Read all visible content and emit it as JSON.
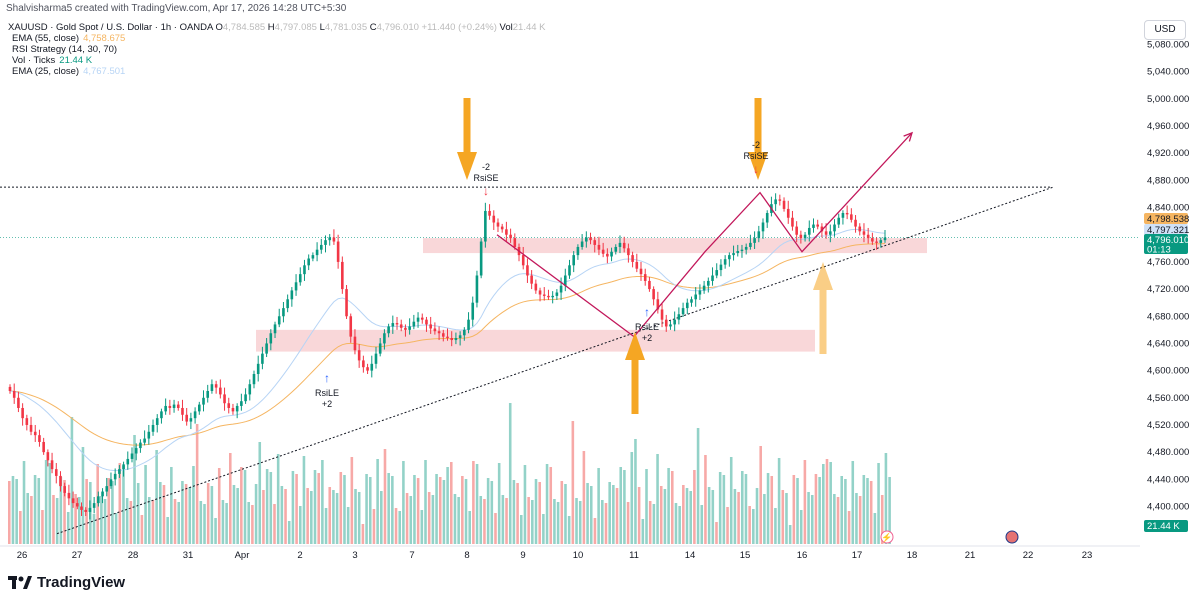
{
  "header": {
    "attribution": "Shalvisharma5 created with TradingView.com, Apr 17, 2026 14:28 UTC+5:30"
  },
  "symbol": {
    "name": "XAUUSD · Gold Spot / U.S. Dollar · 1h · OANDA",
    "o_label": "O",
    "o_value": "4,784.585",
    "h_label": "H",
    "h_value": "4,797.085",
    "l_label": "L",
    "l_value": "4,781.035",
    "c_label": "C",
    "c_value": "4,796.010",
    "change": "+11.440 (+0.24%)",
    "vol_label": "Vol",
    "vol_value": "21.44 K"
  },
  "indicators": [
    {
      "label": "EMA (55, close)",
      "value": "4,758.675",
      "color": "#f7b45a"
    },
    {
      "label": "RSI Strategy (14, 30, 70)",
      "value": "",
      "color": "#131722"
    },
    {
      "label": "Vol · Ticks",
      "value": "21.44 K",
      "color": "#089981"
    },
    {
      "label": "EMA (25, close)",
      "value": "4,767.501",
      "color": "#b7d4f5"
    }
  ],
  "currency_button": "USD",
  "brand": "TradingView",
  "colors": {
    "up": "#089981",
    "down": "#f23645",
    "vol_up": "#93d2c8",
    "vol_down": "#f7a9a7",
    "ema55": "#f5b561",
    "ema25": "#b7d4f5",
    "pattern": "#c2185b",
    "zone": "#f7c9cc",
    "arrow": "#f5a623",
    "signal_long": "#2962ff",
    "signal_short": "#f23645"
  },
  "chart_data": {
    "type": "candlestick",
    "title": "XAUUSD · Gold Spot / U.S. Dollar · 1h · OANDA",
    "price_axis": {
      "ticks": [
        5080,
        5040,
        5000,
        4960,
        4920,
        4880,
        4840,
        4760,
        4720,
        4680,
        4640,
        4600,
        4560,
        4520,
        4480,
        4440,
        4400
      ],
      "tick_labels": [
        "5,080.000",
        "5,040.000",
        "5,000.000",
        "4,960.000",
        "4,920.000",
        "4,880.000",
        "4,840.000",
        "4,760.000",
        "4,720.000",
        "4,680.000",
        "4,640.000",
        "4,600.000",
        "4,560.000",
        "4,520.000",
        "4,480.000",
        "4,440.000",
        "4,400.000"
      ],
      "range": [
        4360,
        5100
      ]
    },
    "time_axis": {
      "labels": [
        "26",
        "27",
        "28",
        "31",
        "Apr",
        "2",
        "3",
        "7",
        "8",
        "9",
        "10",
        "11",
        "14",
        "15",
        "16",
        "17",
        "18",
        "21",
        "22",
        "23"
      ]
    },
    "price_tags": [
      {
        "label": "4,798.538",
        "price": 4798.538,
        "color": "#f5b561",
        "text_color": "#131722"
      },
      {
        "label": "4,797.321",
        "price": 4797.321,
        "color": "#cfe1f7",
        "text_color": "#131722"
      },
      {
        "label": "4,796.010",
        "price": 4796.01,
        "color": "#089981",
        "text_color": "#ffffff",
        "countdown": "01:13"
      }
    ],
    "volume_tag": "21.44 K",
    "resistance_level": 4870,
    "trendline": {
      "from": [
        "26",
        4360
      ],
      "to": [
        "22",
        4870
      ]
    },
    "zones": [
      {
        "from": "8",
        "to": "17",
        "low": 4773,
        "high": 4795
      },
      {
        "from": "2",
        "to": "15",
        "low": 4628,
        "high": 4660
      }
    ],
    "pattern_path": [
      [
        "8",
        4800
      ],
      [
        "11",
        4650
      ],
      [
        "14",
        4775
      ],
      [
        "15",
        4862
      ],
      [
        "16",
        4775
      ],
      [
        "18",
        4950
      ]
    ],
    "signals": [
      {
        "type": "RsiLE",
        "qty": "+2",
        "time": "2",
        "price": 4585
      },
      {
        "type": "RsiSE",
        "qty": "-2",
        "time": "8",
        "price": 4838
      },
      {
        "type": "RsiLE",
        "qty": "+2",
        "time": "11",
        "price": 4665
      },
      {
        "type": "RsiSE",
        "qty": "-2",
        "time": "15",
        "price": 4850
      }
    ],
    "closes": [
      4570,
      4560,
      4545,
      4530,
      4520,
      4510,
      4505,
      4495,
      4480,
      4468,
      4455,
      4445,
      4430,
      4420,
      4412,
      4405,
      4400,
      4395,
      4392,
      4398,
      4405,
      4415,
      4422,
      4430,
      4440,
      4448,
      4455,
      4462,
      4470,
      4478,
      4486,
      4494,
      4500,
      4510,
      4520,
      4530,
      4540,
      4548,
      4545,
      4550,
      4545,
      4535,
      4525,
      4530,
      4540,
      4550,
      4560,
      4570,
      4580,
      4575,
      4565,
      4552,
      4545,
      4540,
      4548,
      4555,
      4565,
      4580,
      4595,
      4610,
      4625,
      4640,
      4655,
      4668,
      4680,
      4692,
      4705,
      4718,
      4730,
      4742,
      4755,
      4765,
      4770,
      4778,
      4785,
      4792,
      4796,
      4790,
      4760,
      4720,
      4680,
      4650,
      4630,
      4615,
      4605,
      4600,
      4610,
      4625,
      4640,
      4655,
      4665,
      4670,
      4668,
      4663,
      4660,
      4665,
      4672,
      4678,
      4675,
      4668,
      4662,
      4658,
      4655,
      4650,
      4648,
      4645,
      4648,
      4652,
      4660,
      4675,
      4700,
      4740,
      4790,
      4835,
      4828,
      4818,
      4812,
      4808,
      4800,
      4795,
      4782,
      4770,
      4755,
      4740,
      4728,
      4718,
      4712,
      4710,
      4708,
      4710,
      4715,
      4725,
      4740,
      4755,
      4770,
      4782,
      4790,
      4796,
      4792,
      4785,
      4778,
      4772,
      4768,
      4775,
      4782,
      4788,
      4780,
      4770,
      4760,
      4750,
      4742,
      4732,
      4720,
      4705,
      4690,
      4675,
      4665,
      4668,
      4675,
      4683,
      4692,
      4700,
      4705,
      4712,
      4718,
      4725,
      4732,
      4740,
      4748,
      4756,
      4764,
      4770,
      4773,
      4776,
      4778,
      4782,
      4788,
      4795,
      4805,
      4818,
      4832,
      4845,
      4852,
      4850,
      4838,
      4825,
      4812,
      4800,
      4795,
      4800,
      4810,
      4815,
      4812,
      4805,
      4800,
      4805,
      4815,
      4825,
      4832,
      4830,
      4822,
      4812,
      4805,
      4800,
      4795,
      4790,
      4788,
      4792,
      4796
    ],
    "volume_tick_count": 240
  }
}
